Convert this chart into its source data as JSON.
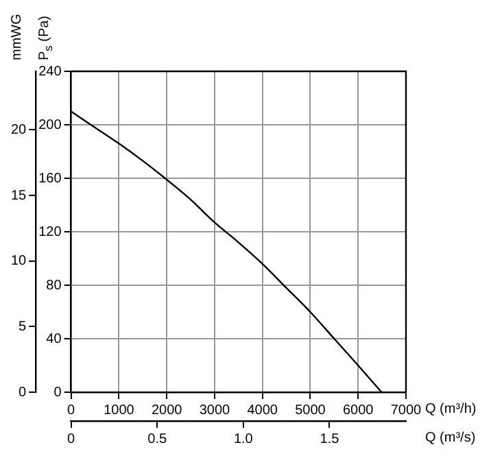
{
  "chart_data": {
    "type": "line",
    "xlabel": "Q (m³/h)",
    "ylabel": "P$_{s}$ (Pa)",
    "y2label": "mmWG",
    "x2label": "Q (m³/s)",
    "x": [
      0,
      500,
      1000,
      1500,
      2000,
      2500,
      3000,
      3500,
      4000,
      4500,
      5000,
      5500,
      6000,
      6490
    ],
    "series": [
      {
        "color": "#000000",
        "values": [
          210,
          198,
          186,
          173,
          159,
          144,
          127,
          112,
          96,
          78,
          60,
          40,
          20,
          0
        ]
      }
    ],
    "xlim": [
      0,
      7000
    ],
    "xticks": [
      0,
      1000,
      2000,
      3000,
      4000,
      5000,
      6000,
      7000
    ],
    "ylim": [
      0,
      240
    ],
    "yticks": [
      0,
      40,
      80,
      120,
      160,
      200,
      240
    ],
    "x2lim": [
      0,
      1.944
    ],
    "x2ticks": [
      0,
      0.5,
      {
        "value": 1,
        "label": "1.0"
      },
      1.5
    ],
    "y2lim": [
      0,
      24.47
    ],
    "y2ticks": [
      0,
      5,
      10,
      15,
      20
    ],
    "grid": true,
    "legend": false,
    "marker": "none",
    "line_style": "solid"
  }
}
